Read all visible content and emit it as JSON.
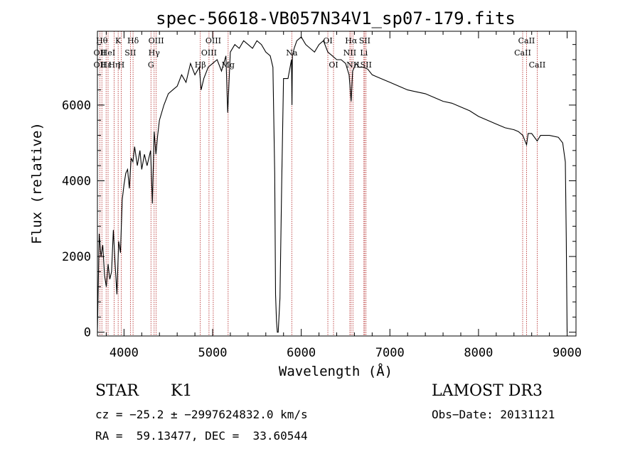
{
  "chart_data": {
    "type": "line",
    "title": "spec-56618-VB057N34V1_sp07-179.fits",
    "xlabel": "Wavelength (Å)",
    "ylabel": "Flux (relative)",
    "xlim": [
      3700,
      9100
    ],
    "ylim": [
      -100,
      7950
    ],
    "xticks": [
      4000,
      5000,
      6000,
      7000,
      8000,
      9000
    ],
    "yticks": [
      0,
      2000,
      4000,
      6000
    ],
    "series": [
      {
        "name": "spectrum",
        "x": [
          3700,
          3720,
          3740,
          3760,
          3780,
          3800,
          3820,
          3840,
          3860,
          3880,
          3900,
          3920,
          3940,
          3960,
          3980,
          4000,
          4020,
          4040,
          4060,
          4080,
          4100,
          4120,
          4150,
          4180,
          4200,
          4230,
          4260,
          4300,
          4320,
          4340,
          4360,
          4380,
          4400,
          4450,
          4500,
          4550,
          4600,
          4650,
          4700,
          4750,
          4800,
          4850,
          4870,
          4900,
          4950,
          5000,
          5050,
          5100,
          5150,
          5170,
          5200,
          5250,
          5300,
          5350,
          5400,
          5450,
          5500,
          5550,
          5600,
          5650,
          5680,
          5700,
          5710,
          5720,
          5730,
          5740,
          5760,
          5780,
          5800,
          5850,
          5890,
          5895,
          5900,
          5920,
          5950,
          6000,
          6050,
          6100,
          6150,
          6200,
          6250,
          6300,
          6350,
          6400,
          6450,
          6500,
          6540,
          6563,
          6580,
          6620,
          6650,
          6700,
          6750,
          6800,
          6850,
          6900,
          6950,
          7000,
          7100,
          7200,
          7300,
          7400,
          7500,
          7600,
          7700,
          7800,
          7900,
          8000,
          8100,
          8200,
          8300,
          8400,
          8450,
          8500,
          8542,
          8560,
          8600,
          8662,
          8700,
          8800,
          8900,
          8950,
          8980,
          8990,
          9000
        ],
        "values": [
          0,
          2600,
          2000,
          2300,
          1500,
          1200,
          1800,
          1400,
          1600,
          2700,
          1800,
          1000,
          2400,
          2100,
          3500,
          3900,
          4200,
          4300,
          3800,
          4600,
          4500,
          4900,
          4400,
          4800,
          4300,
          4700,
          4400,
          4800,
          3400,
          5300,
          4700,
          5200,
          5600,
          6000,
          6300,
          6400,
          6500,
          6800,
          6600,
          7100,
          6800,
          7000,
          6400,
          6700,
          7000,
          7100,
          7200,
          6900,
          7300,
          5800,
          7400,
          7600,
          7500,
          7700,
          7600,
          7500,
          7700,
          7600,
          7400,
          7300,
          7000,
          4200,
          1000,
          300,
          0,
          0,
          900,
          4000,
          6700,
          6700,
          7200,
          6000,
          7300,
          7500,
          7700,
          7800,
          7600,
          7500,
          7400,
          7600,
          7700,
          7400,
          7300,
          7200,
          7200,
          7100,
          6800,
          6100,
          6900,
          7100,
          7000,
          7000,
          6950,
          6800,
          6750,
          6700,
          6650,
          6600,
          6500,
          6400,
          6350,
          6300,
          6200,
          6100,
          6050,
          5950,
          5850,
          5700,
          5600,
          5500,
          5400,
          5350,
          5300,
          5200,
          4950,
          5250,
          5250,
          5050,
          5200,
          5200,
          5150,
          5000,
          4500,
          2500,
          0
        ]
      }
    ],
    "lines": [
      {
        "x": 3750,
        "label": "Hθ",
        "row": 1
      },
      {
        "x": 3727,
        "label": "OII",
        "row": 2
      },
      {
        "x": 3727,
        "label": "OII",
        "row": 3
      },
      {
        "x": 3798,
        "label": "Hε",
        "row": 3
      },
      {
        "x": 3820,
        "label": "HeI",
        "row": 2
      },
      {
        "x": 3889,
        "label": "Hη",
        "row": 3
      },
      {
        "x": 3934,
        "label": "K",
        "row": 1
      },
      {
        "x": 3968,
        "label": "H",
        "row": 3
      },
      {
        "x": 4072,
        "label": "SII",
        "row": 2
      },
      {
        "x": 4102,
        "label": "Hδ",
        "row": 1
      },
      {
        "x": 4304,
        "label": "G",
        "row": 3
      },
      {
        "x": 4340,
        "label": "Hγ",
        "row": 2
      },
      {
        "x": 4363,
        "label": "OIII",
        "row": 1
      },
      {
        "x": 4861,
        "label": "Hβ",
        "row": 3
      },
      {
        "x": 4959,
        "label": "OIII",
        "row": 2
      },
      {
        "x": 5007,
        "label": "OIII",
        "row": 1
      },
      {
        "x": 5175,
        "label": "Mg",
        "row": 3
      },
      {
        "x": 5893,
        "label": "Na",
        "row": 2
      },
      {
        "x": 6300,
        "label": "OI",
        "row": 1
      },
      {
        "x": 6364,
        "label": "OI",
        "row": 3
      },
      {
        "x": 6548,
        "label": "NII",
        "row": 2
      },
      {
        "x": 6563,
        "label": "Hα",
        "row": 1
      },
      {
        "x": 6583,
        "label": "NII",
        "row": 3
      },
      {
        "x": 6707,
        "label": "Li",
        "row": 2
      },
      {
        "x": 6716,
        "label": "SII",
        "row": 1
      },
      {
        "x": 6731,
        "label": "SII",
        "row": 3
      },
      {
        "x": 8498,
        "label": "CaII",
        "row": 2
      },
      {
        "x": 8542,
        "label": "CaII",
        "row": 1
      },
      {
        "x": 8662,
        "label": "CaII",
        "row": 3
      }
    ]
  },
  "info": {
    "class": "STAR",
    "subclass": "K1",
    "survey": "LAMOST DR3",
    "cz_line": "cz = −25.2 ± −2997624832.0 km/s",
    "obs_date": "Obs−Date: 20131121",
    "radec": "RA =  59.13477, DEC =  33.60544"
  }
}
